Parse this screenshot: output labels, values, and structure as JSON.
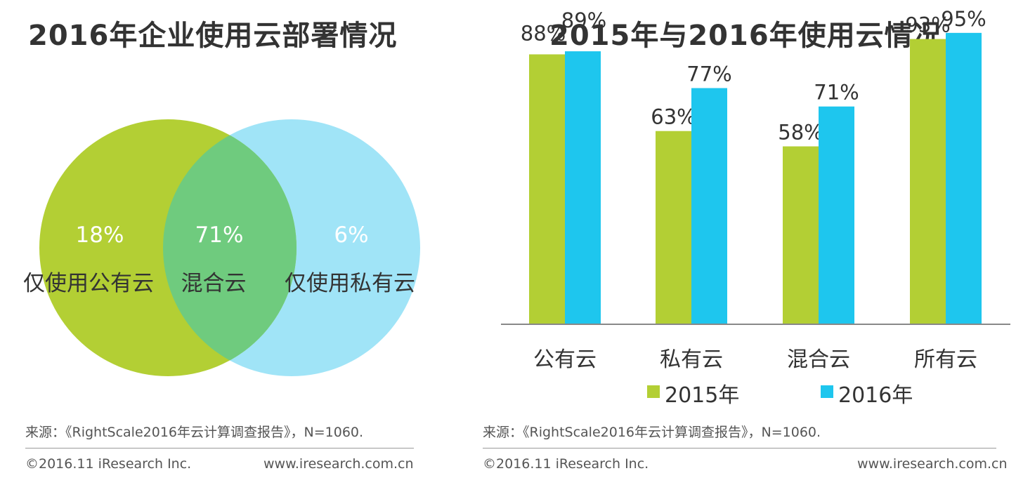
{
  "left_panel": {
    "title": "2016年企业使用云部署情况",
    "venn": {
      "public_only": {
        "label": "仅使用公有云",
        "value": "18%",
        "color": "#b3cf34"
      },
      "hybrid": {
        "label": "混合云",
        "value": "71%",
        "color": "#6fcb7e"
      },
      "private_only": {
        "label": "仅使用私有云",
        "value": "6%",
        "color": "#a0e4f7"
      }
    },
    "source": "来源：《RightScale2016年云计算调查报告》，N=1060.",
    "copyright": "©2016.11 iResearch Inc.",
    "website": "www.iresearch.com.cn"
  },
  "right_panel": {
    "title": "2015年与2016年使用云情况",
    "source": "来源：《RightScale2016年云计算调查报告》，N=1060.",
    "copyright": "©2016.11 iResearch Inc.",
    "website": "www.iresearch.com.cn"
  },
  "chart_data": [
    {
      "type": "venn",
      "title": "2016年企业使用云部署情况",
      "sets": [
        "仅使用公有云",
        "混合云",
        "仅使用私有云"
      ],
      "values": [
        18,
        71,
        6
      ],
      "unit": "%"
    },
    {
      "type": "bar",
      "title": "2015年与2016年使用云情况",
      "categories": [
        "公有云",
        "私有云",
        "混合云",
        "所有云"
      ],
      "series": [
        {
          "name": "2015年",
          "values": [
            88,
            63,
            58,
            93
          ],
          "color": "#b3cf34"
        },
        {
          "name": "2016年",
          "values": [
            89,
            77,
            71,
            95
          ],
          "color": "#1ec6ee"
        }
      ],
      "unit": "%",
      "ylim": [
        0,
        100
      ],
      "legend": "bottom",
      "grid": false
    }
  ]
}
